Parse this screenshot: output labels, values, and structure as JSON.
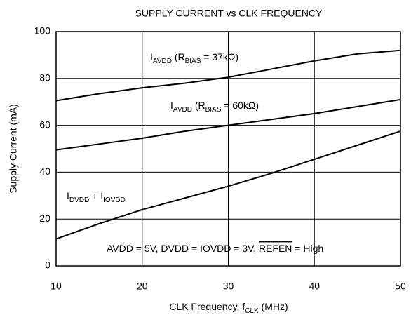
{
  "chart_data": {
    "type": "line",
    "title": "SUPPLY CURRENT vs CLK FREQUENCY",
    "y_label": "Supply Current (mA)",
    "x_label_parts": [
      {
        "text": "CLK Frequency, f"
      },
      {
        "text": "CLK",
        "sub": true
      },
      {
        "text": " (MHz)"
      }
    ],
    "x": [
      10,
      15,
      20,
      25,
      30,
      35,
      40,
      45,
      50
    ],
    "series": [
      {
        "color": "#000000",
        "values": [
          70.5,
          73.5,
          76,
          78,
          80.5,
          84,
          87.5,
          90.5,
          92
        ]
      },
      {
        "color": "#000000",
        "values": [
          49.5,
          52,
          54.5,
          57.5,
          60,
          62.5,
          65,
          68,
          71
        ]
      },
      {
        "color": "#000000",
        "values": [
          11.5,
          18,
          24,
          29,
          34,
          39.5,
          45.5,
          51.5,
          57.5
        ]
      }
    ],
    "annotations": [
      {
        "parts": [
          {
            "text": "I"
          },
          {
            "text": "AVDD",
            "sub": true
          },
          {
            "text": " (R"
          },
          {
            "text": "BIAS",
            "sub": true
          },
          {
            "text": " = 37kΩ)"
          }
        ]
      },
      {
        "parts": [
          {
            "text": "I"
          },
          {
            "text": "AVDD",
            "sub": true
          },
          {
            "text": " (R"
          },
          {
            "text": "BIAS",
            "sub": true
          },
          {
            "text": " = 60kΩ)"
          }
        ]
      },
      {
        "parts": [
          {
            "text": "I"
          },
          {
            "text": "DVDD",
            "sub": true
          },
          {
            "text": " + I"
          },
          {
            "text": "IOVDD",
            "sub": true
          }
        ]
      },
      {
        "parts": [
          {
            "text": "AVDD = 5V, DVDD = IOVDD = 3V, "
          },
          {
            "text": "REFEN",
            "overline": true
          },
          {
            "text": " = High"
          }
        ]
      }
    ],
    "xlim": [
      10,
      50
    ],
    "ylim": [
      0,
      100
    ],
    "xticks": [
      10,
      20,
      30,
      40,
      50
    ],
    "yticks": [
      0,
      20,
      40,
      60,
      80,
      100
    ],
    "grid": true
  }
}
